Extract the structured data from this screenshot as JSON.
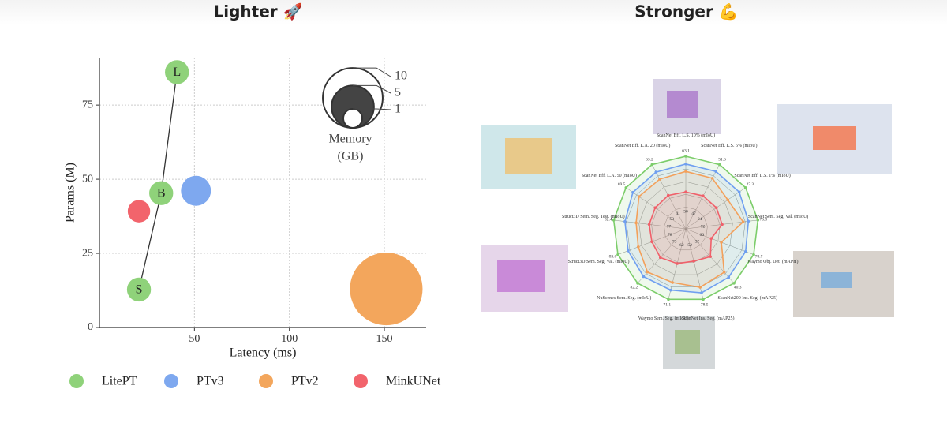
{
  "chart_data": [
    {
      "type": "scatter",
      "title": "Lighter 🚀",
      "x_label": "Latency (ms)",
      "y_label": "Params (M)",
      "xlim": [
        0,
        172
      ],
      "ylim": [
        0,
        91
      ],
      "xticks": [
        50,
        100,
        150
      ],
      "yticks": [
        0,
        25,
        50,
        75
      ],
      "grid": true,
      "legend": "bottom",
      "size_legend": {
        "title": [
          "Memory",
          "(GB)"
        ],
        "values": [
          10,
          5,
          1
        ]
      },
      "series": [
        {
          "name": "LitePT",
          "color": "#8fd27a",
          "x": [
            20.8,
            32.5,
            40.8
          ],
          "values": [
            12.8,
            45.3,
            86.1
          ],
          "sizes": [
            1.6,
            1.6,
            1.6
          ],
          "point_labels": [
            "S",
            "B",
            "L"
          ]
        },
        {
          "name": "PTv3",
          "color": "#7ea8ef",
          "x": [
            50.8
          ],
          "values": [
            46.1
          ],
          "sizes": [
            2.5
          ]
        },
        {
          "name": "PTv2",
          "color": "#f3a65c",
          "x": [
            151
          ],
          "values": [
            13
          ],
          "sizes": [
            14.7
          ]
        },
        {
          "name": "MinkUNet",
          "color": "#f2646c",
          "x": [
            20.8
          ],
          "values": [
            39.2
          ],
          "sizes": [
            1.4
          ]
        }
      ]
    },
    {
      "type": "radar",
      "title": "Stronger 💪",
      "categories": [
        "ScanNet Eff. L.S. 10% (mIoU)",
        "ScanNet Eff. L.S. 5% (mIoU)",
        "ScanNet Eff. L.S. 1% (mIoU)",
        "ScanNet Sem. Seg. Val. (mIoU)",
        "Waymo Obj. Det. (mAPH)",
        "ScanNet200 Ins. Seg. (mAP25)",
        "ScanNet Ins. Seg. (mAP25)",
        "Waymo Sem. Seg. (mIoU)",
        "NuScenes Sem. Seg. (mIoU)",
        "Struct3D Sem. Seg. Val. (mIoU)",
        "Struct3D Sem. Seg. Test. (mIoU)",
        "ScanNet Eff. L.A. 50 (mIoU)",
        "ScanNet Eff. L.A. 20 (mIoU)"
      ],
      "axis_ranges": [
        [
          50,
          63.1
        ],
        [
          47,
          51.6
        ],
        [
          24,
          27.3
        ],
        [
          72,
          76.8
        ],
        [
          66,
          70.7
        ],
        [
          32,
          40.3
        ],
        [
          52,
          78.5
        ],
        [
          62,
          71.1
        ],
        [
          73,
          82.2
        ],
        [
          78,
          83.6
        ],
        [
          77,
          82.4
        ],
        [
          53,
          69.5
        ],
        [
          41,
          63.2
        ]
      ],
      "series": [
        {
          "color": "#7ccd6a",
          "values": [
            63.1,
            51.6,
            27.3,
            76.8,
            70.7,
            40.3,
            78.5,
            71.1,
            82.2,
            83.6,
            82.4,
            69.5,
            63.2
          ]
        },
        {
          "color": "#6f9ff0",
          "values": [
            61.1,
            50.9,
            26.8,
            75.9,
            69.9,
            39.0,
            75.0,
            69.4,
            80.6,
            82.4,
            81.2,
            66.8,
            59.5
          ]
        },
        {
          "color": "#f3a05a",
          "values": [
            59.2,
            50.2,
            25.9,
            75.4,
            67.5,
            37.9,
            72.0,
            68.0,
            79.5,
            81.2,
            80.0,
            64.4,
            56.0
          ]
        },
        {
          "color": "#f0606a",
          "values": [
            53.9,
            48.4,
            25.0,
            73.4,
            66.5,
            34.5,
            58.0,
            64.5,
            76.0,
            79.6,
            78.6,
            58.0,
            48.0
          ]
        }
      ]
    }
  ]
}
